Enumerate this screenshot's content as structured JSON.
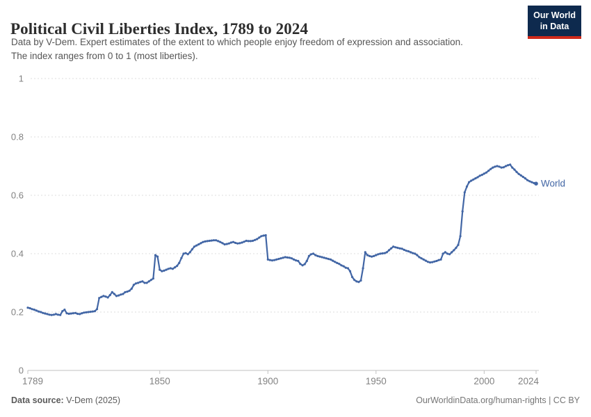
{
  "header": {
    "title": "Political Civil Liberties Index, 1789 to 2024",
    "subtitle_line1": "Data by V-Dem. Expert estimates of the extent to which people enjoy freedom of expression and association.",
    "subtitle_line2": "The index ranges from 0 to 1 (most liberties).",
    "logo": {
      "line1": "Our World",
      "line2": "in Data",
      "bg_color": "#0e2a4e",
      "accent_color": "#cf2a1b"
    }
  },
  "chart_data": {
    "type": "line",
    "title": "Political Civil Liberties Index, 1789 to 2024",
    "xlabel": "",
    "ylabel": "",
    "xlim": [
      1789,
      2024
    ],
    "ylim": [
      0,
      1
    ],
    "x_ticks": [
      1789,
      1850,
      1900,
      1950,
      2000,
      2024
    ],
    "y_ticks": [
      0,
      0.2,
      0.4,
      0.6,
      0.8,
      1
    ],
    "y_tick_labels": [
      "0",
      "0.2",
      "0.4",
      "0.6",
      "0.8",
      "1"
    ],
    "grid": "horizontal-dashed",
    "legend_position": "end-of-line",
    "series": [
      {
        "name": "World",
        "color": "#4266a5",
        "points": [
          [
            1789,
            0.215
          ],
          [
            1790,
            0.213
          ],
          [
            1791,
            0.21
          ],
          [
            1792,
            0.208
          ],
          [
            1793,
            0.205
          ],
          [
            1794,
            0.202
          ],
          [
            1795,
            0.2
          ],
          [
            1796,
            0.197
          ],
          [
            1797,
            0.195
          ],
          [
            1798,
            0.193
          ],
          [
            1799,
            0.191
          ],
          [
            1800,
            0.19
          ],
          [
            1801,
            0.191
          ],
          [
            1802,
            0.193
          ],
          [
            1803,
            0.191
          ],
          [
            1804,
            0.19
          ],
          [
            1805,
            0.203
          ],
          [
            1806,
            0.208
          ],
          [
            1807,
            0.196
          ],
          [
            1808,
            0.194
          ],
          [
            1809,
            0.195
          ],
          [
            1810,
            0.196
          ],
          [
            1811,
            0.197
          ],
          [
            1812,
            0.194
          ],
          [
            1813,
            0.193
          ],
          [
            1814,
            0.196
          ],
          [
            1815,
            0.198
          ],
          [
            1816,
            0.199
          ],
          [
            1817,
            0.2
          ],
          [
            1818,
            0.201
          ],
          [
            1819,
            0.202
          ],
          [
            1820,
            0.203
          ],
          [
            1821,
            0.21
          ],
          [
            1822,
            0.248
          ],
          [
            1823,
            0.252
          ],
          [
            1824,
            0.255
          ],
          [
            1825,
            0.253
          ],
          [
            1826,
            0.25
          ],
          [
            1827,
            0.258
          ],
          [
            1828,
            0.268
          ],
          [
            1829,
            0.262
          ],
          [
            1830,
            0.255
          ],
          [
            1831,
            0.257
          ],
          [
            1832,
            0.26
          ],
          [
            1833,
            0.262
          ],
          [
            1834,
            0.268
          ],
          [
            1835,
            0.27
          ],
          [
            1836,
            0.273
          ],
          [
            1837,
            0.28
          ],
          [
            1838,
            0.293
          ],
          [
            1839,
            0.298
          ],
          [
            1840,
            0.3
          ],
          [
            1841,
            0.303
          ],
          [
            1842,
            0.305
          ],
          [
            1843,
            0.3
          ],
          [
            1844,
            0.3
          ],
          [
            1845,
            0.305
          ],
          [
            1846,
            0.31
          ],
          [
            1847,
            0.315
          ],
          [
            1848,
            0.395
          ],
          [
            1849,
            0.39
          ],
          [
            1850,
            0.345
          ],
          [
            1851,
            0.34
          ],
          [
            1852,
            0.342
          ],
          [
            1853,
            0.345
          ],
          [
            1854,
            0.348
          ],
          [
            1855,
            0.35
          ],
          [
            1856,
            0.348
          ],
          [
            1857,
            0.353
          ],
          [
            1858,
            0.358
          ],
          [
            1859,
            0.368
          ],
          [
            1860,
            0.385
          ],
          [
            1861,
            0.4
          ],
          [
            1862,
            0.402
          ],
          [
            1863,
            0.398
          ],
          [
            1864,
            0.405
          ],
          [
            1865,
            0.415
          ],
          [
            1866,
            0.424
          ],
          [
            1867,
            0.428
          ],
          [
            1868,
            0.432
          ],
          [
            1869,
            0.436
          ],
          [
            1870,
            0.44
          ],
          [
            1871,
            0.442
          ],
          [
            1872,
            0.443
          ],
          [
            1873,
            0.444
          ],
          [
            1874,
            0.445
          ],
          [
            1875,
            0.446
          ],
          [
            1876,
            0.446
          ],
          [
            1877,
            0.443
          ],
          [
            1878,
            0.44
          ],
          [
            1879,
            0.436
          ],
          [
            1880,
            0.432
          ],
          [
            1881,
            0.433
          ],
          [
            1882,
            0.435
          ],
          [
            1883,
            0.438
          ],
          [
            1884,
            0.44
          ],
          [
            1885,
            0.437
          ],
          [
            1886,
            0.435
          ],
          [
            1887,
            0.436
          ],
          [
            1888,
            0.438
          ],
          [
            1889,
            0.441
          ],
          [
            1890,
            0.444
          ],
          [
            1891,
            0.443
          ],
          [
            1892,
            0.443
          ],
          [
            1893,
            0.444
          ],
          [
            1894,
            0.447
          ],
          [
            1895,
            0.45
          ],
          [
            1896,
            0.455
          ],
          [
            1897,
            0.46
          ],
          [
            1898,
            0.462
          ],
          [
            1899,
            0.463
          ],
          [
            1900,
            0.38
          ],
          [
            1901,
            0.378
          ],
          [
            1902,
            0.377
          ],
          [
            1903,
            0.378
          ],
          [
            1904,
            0.38
          ],
          [
            1905,
            0.382
          ],
          [
            1906,
            0.384
          ],
          [
            1907,
            0.386
          ],
          [
            1908,
            0.388
          ],
          [
            1909,
            0.387
          ],
          [
            1910,
            0.386
          ],
          [
            1911,
            0.384
          ],
          [
            1912,
            0.38
          ],
          [
            1913,
            0.377
          ],
          [
            1914,
            0.375
          ],
          [
            1915,
            0.365
          ],
          [
            1916,
            0.36
          ],
          [
            1917,
            0.364
          ],
          [
            1918,
            0.375
          ],
          [
            1919,
            0.392
          ],
          [
            1920,
            0.398
          ],
          [
            1921,
            0.4
          ],
          [
            1922,
            0.395
          ],
          [
            1923,
            0.392
          ],
          [
            1924,
            0.39
          ],
          [
            1925,
            0.388
          ],
          [
            1926,
            0.386
          ],
          [
            1927,
            0.384
          ],
          [
            1928,
            0.382
          ],
          [
            1929,
            0.38
          ],
          [
            1930,
            0.376
          ],
          [
            1931,
            0.372
          ],
          [
            1932,
            0.368
          ],
          [
            1933,
            0.365
          ],
          [
            1934,
            0.36
          ],
          [
            1935,
            0.357
          ],
          [
            1936,
            0.352
          ],
          [
            1937,
            0.35
          ],
          [
            1938,
            0.34
          ],
          [
            1939,
            0.32
          ],
          [
            1940,
            0.31
          ],
          [
            1941,
            0.305
          ],
          [
            1942,
            0.303
          ],
          [
            1943,
            0.308
          ],
          [
            1944,
            0.35
          ],
          [
            1945,
            0.405
          ],
          [
            1946,
            0.395
          ],
          [
            1947,
            0.392
          ],
          [
            1948,
            0.39
          ],
          [
            1949,
            0.392
          ],
          [
            1950,
            0.395
          ],
          [
            1951,
            0.398
          ],
          [
            1952,
            0.4
          ],
          [
            1953,
            0.401
          ],
          [
            1954,
            0.402
          ],
          [
            1955,
            0.405
          ],
          [
            1956,
            0.412
          ],
          [
            1957,
            0.418
          ],
          [
            1958,
            0.424
          ],
          [
            1959,
            0.422
          ],
          [
            1960,
            0.42
          ],
          [
            1961,
            0.418
          ],
          [
            1962,
            0.417
          ],
          [
            1963,
            0.413
          ],
          [
            1964,
            0.41
          ],
          [
            1965,
            0.408
          ],
          [
            1966,
            0.405
          ],
          [
            1967,
            0.402
          ],
          [
            1968,
            0.4
          ],
          [
            1969,
            0.395
          ],
          [
            1970,
            0.388
          ],
          [
            1971,
            0.384
          ],
          [
            1972,
            0.38
          ],
          [
            1973,
            0.376
          ],
          [
            1974,
            0.372
          ],
          [
            1975,
            0.37
          ],
          [
            1976,
            0.371
          ],
          [
            1977,
            0.373
          ],
          [
            1978,
            0.375
          ],
          [
            1979,
            0.378
          ],
          [
            1980,
            0.38
          ],
          [
            1981,
            0.4
          ],
          [
            1982,
            0.405
          ],
          [
            1983,
            0.4
          ],
          [
            1984,
            0.398
          ],
          [
            1985,
            0.405
          ],
          [
            1986,
            0.412
          ],
          [
            1987,
            0.42
          ],
          [
            1988,
            0.43
          ],
          [
            1989,
            0.46
          ],
          [
            1990,
            0.545
          ],
          [
            1991,
            0.61
          ],
          [
            1992,
            0.63
          ],
          [
            1993,
            0.645
          ],
          [
            1994,
            0.65
          ],
          [
            1995,
            0.654
          ],
          [
            1996,
            0.658
          ],
          [
            1997,
            0.662
          ],
          [
            1998,
            0.667
          ],
          [
            1999,
            0.67
          ],
          [
            2000,
            0.674
          ],
          [
            2001,
            0.678
          ],
          [
            2002,
            0.684
          ],
          [
            2003,
            0.69
          ],
          [
            2004,
            0.695
          ],
          [
            2005,
            0.698
          ],
          [
            2006,
            0.7
          ],
          [
            2007,
            0.698
          ],
          [
            2008,
            0.695
          ],
          [
            2009,
            0.696
          ],
          [
            2010,
            0.7
          ],
          [
            2011,
            0.703
          ],
          [
            2012,
            0.705
          ],
          [
            2013,
            0.695
          ],
          [
            2014,
            0.688
          ],
          [
            2015,
            0.68
          ],
          [
            2016,
            0.673
          ],
          [
            2017,
            0.668
          ],
          [
            2018,
            0.663
          ],
          [
            2019,
            0.658
          ],
          [
            2020,
            0.652
          ],
          [
            2021,
            0.648
          ],
          [
            2022,
            0.645
          ],
          [
            2023,
            0.642
          ],
          [
            2024,
            0.64
          ]
        ]
      }
    ]
  },
  "footer": {
    "source_label": "Data source:",
    "source_value": " V-Dem (2025)",
    "link_text": "OurWorldinData.org/human-rights | CC BY"
  },
  "colors": {
    "line": "#4266a5",
    "gridline": "#dedede",
    "axis_line": "#c0c0c0",
    "tick_label": "#828282",
    "title": "#2d2d2d",
    "subtitle": "#555555"
  }
}
